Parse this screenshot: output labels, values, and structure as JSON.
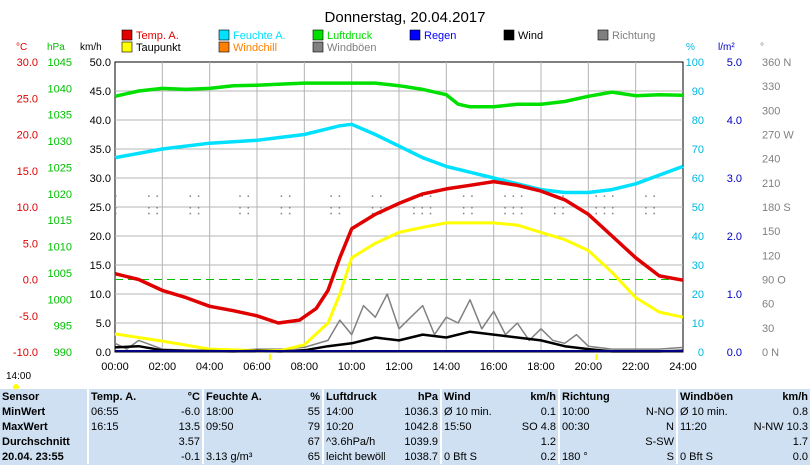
{
  "title": "Donnerstag, 20.04.2017",
  "legend": [
    {
      "label": "Temp. A.",
      "color": "#e00000"
    },
    {
      "label": "Feuchte A.",
      "color": "#00e0ff"
    },
    {
      "label": "Luftdruck",
      "color": "#00e000"
    },
    {
      "label": "Regen",
      "color": "#0000ff"
    },
    {
      "label": "Wind",
      "color": "#000000"
    },
    {
      "label": "Richtung",
      "color": "#808080"
    },
    {
      "label": "Taupunkt",
      "color": "#ffff00"
    },
    {
      "label": "Windchill",
      "color": "#ff8000"
    },
    {
      "label": "Windböen",
      "color": "#808080"
    }
  ],
  "units": {
    "temp": "°C",
    "pressure": "hPa",
    "wind": "km/h",
    "humidity": "%",
    "rain": "l/m²",
    "direction": "°"
  },
  "sun_marker_time": "14:00",
  "colors": {
    "temp": "#e00000",
    "humidity": "#00e0ff",
    "pressure": "#00e000",
    "dewpoint": "#ffff00",
    "wind": "#000000",
    "gust": "#808080",
    "rain": "#000080",
    "direction": "#808080",
    "threshold": "#00c000",
    "grid": "#b4b4b4",
    "axis_pressure_labels": "#00c000",
    "table_bg": "#cfe0f2"
  },
  "chart_data": {
    "type": "line",
    "x_ticks": [
      "00:00",
      "02:00",
      "04:00",
      "06:00",
      "08:00",
      "10:00",
      "12:00",
      "14:00",
      "16:00",
      "18:00",
      "20:00",
      "22:00",
      "24:00"
    ],
    "axes": {
      "temp": {
        "range": [
          -10,
          30
        ],
        "ticks": [
          "30.0",
          "25.0",
          "20.0",
          "15.0",
          "10.0",
          "5.0",
          "0.0",
          "-5.0",
          "-10.0"
        ]
      },
      "pressure": {
        "range": [
          990,
          1045
        ],
        "ticks": [
          "1045",
          "1040",
          "1035",
          "1030",
          "1025",
          "1020",
          "1015",
          "1010",
          "1005",
          "1000",
          "995",
          "990"
        ]
      },
      "wind": {
        "range": [
          0,
          50
        ],
        "ticks": [
          "50.0",
          "45.0",
          "40.0",
          "35.0",
          "30.0",
          "25.0",
          "20.0",
          "15.0",
          "10.0",
          "5.0",
          "0.0"
        ]
      },
      "humidity": {
        "range": [
          0,
          100
        ],
        "ticks": [
          "100",
          "90",
          "80",
          "70",
          "60",
          "50",
          "40",
          "30",
          "20",
          "10",
          "0"
        ]
      },
      "rain": {
        "range": [
          0,
          5
        ],
        "ticks": [
          "5.0",
          "4.0",
          "3.0",
          "2.0",
          "1.0",
          "0.0"
        ]
      },
      "direction": {
        "range": [
          0,
          360
        ],
        "ticks": [
          "360 N",
          "330",
          "300",
          "270 W",
          "240",
          "210",
          "180 S",
          "150",
          "120",
          "90 O",
          "60",
          "30",
          "0 N"
        ]
      }
    },
    "threshold_temp": 0,
    "series": [
      {
        "name": "Temp. A.",
        "axis": "temp",
        "points": [
          [
            0,
            0.8
          ],
          [
            1,
            0
          ],
          [
            2,
            -1.5
          ],
          [
            3,
            -2.5
          ],
          [
            4,
            -3.7
          ],
          [
            5,
            -4.3
          ],
          [
            6,
            -5.0
          ],
          [
            6.9,
            -6.0
          ],
          [
            7.8,
            -5.6
          ],
          [
            8.5,
            -4.0
          ],
          [
            9,
            -1.5
          ],
          [
            9.5,
            3.0
          ],
          [
            10,
            7.0
          ],
          [
            10.5,
            8.0
          ],
          [
            11,
            9.0
          ],
          [
            12,
            10.5
          ],
          [
            13,
            11.8
          ],
          [
            14,
            12.5
          ],
          [
            15,
            13.0
          ],
          [
            16,
            13.5
          ],
          [
            17,
            13.0
          ],
          [
            18,
            12.2
          ],
          [
            19,
            11.0
          ],
          [
            20,
            9.0
          ],
          [
            21,
            6.0
          ],
          [
            22,
            3.0
          ],
          [
            23,
            0.5
          ],
          [
            24,
            -0.1
          ]
        ]
      },
      {
        "name": "Taupunkt",
        "axis": "temp",
        "points": [
          [
            0,
            -7.5
          ],
          [
            2,
            -8.5
          ],
          [
            4,
            -9.6
          ],
          [
            6,
            -9.8
          ],
          [
            7,
            -9.8
          ],
          [
            8,
            -9.0
          ],
          [
            9,
            -6.0
          ],
          [
            9.5,
            -2.0
          ],
          [
            10,
            3.0
          ],
          [
            10.5,
            4.0
          ],
          [
            11,
            5.0
          ],
          [
            12,
            6.5
          ],
          [
            13,
            7.2
          ],
          [
            14,
            7.8
          ],
          [
            15,
            7.8
          ],
          [
            16,
            7.8
          ],
          [
            17,
            7.5
          ],
          [
            18,
            6.5
          ],
          [
            19,
            5.5
          ],
          [
            20,
            4.0
          ],
          [
            21,
            1.0
          ],
          [
            22,
            -2.5
          ],
          [
            23,
            -4.5
          ],
          [
            24,
            -5.2
          ]
        ]
      },
      {
        "name": "Feuchte A.",
        "axis": "humidity",
        "points": [
          [
            0,
            67
          ],
          [
            2,
            70
          ],
          [
            4,
            72
          ],
          [
            6,
            73
          ],
          [
            7,
            74
          ],
          [
            8,
            75
          ],
          [
            9,
            77
          ],
          [
            9.5,
            78
          ],
          [
            10,
            78.5
          ],
          [
            11,
            75
          ],
          [
            12,
            71
          ],
          [
            13,
            67
          ],
          [
            14,
            64
          ],
          [
            15,
            62
          ],
          [
            16,
            60
          ],
          [
            17,
            58
          ],
          [
            18,
            56
          ],
          [
            19,
            55
          ],
          [
            20,
            55
          ],
          [
            21,
            56
          ],
          [
            22,
            58
          ],
          [
            23,
            61
          ],
          [
            24,
            64
          ]
        ]
      },
      {
        "name": "Luftdruck",
        "axis": "pressure",
        "points": [
          [
            0,
            1038.5
          ],
          [
            1,
            1039.5
          ],
          [
            2,
            1040.0
          ],
          [
            3,
            1039.8
          ],
          [
            4,
            1040.0
          ],
          [
            5,
            1040.5
          ],
          [
            6,
            1040.6
          ],
          [
            7,
            1040.8
          ],
          [
            8,
            1041.0
          ],
          [
            9,
            1041.0
          ],
          [
            10,
            1041.0
          ],
          [
            11,
            1041.0
          ],
          [
            12,
            1040.5
          ],
          [
            13,
            1039.8
          ],
          [
            14,
            1038.8
          ],
          [
            14.5,
            1037.0
          ],
          [
            15,
            1036.5
          ],
          [
            16,
            1036.5
          ],
          [
            17,
            1037.0
          ],
          [
            18,
            1037.0
          ],
          [
            19,
            1037.5
          ],
          [
            20,
            1038.5
          ],
          [
            21,
            1039.3
          ],
          [
            22,
            1038.6
          ],
          [
            23,
            1038.8
          ],
          [
            24,
            1038.7
          ]
        ]
      },
      {
        "name": "Windböen",
        "axis": "wind",
        "points": [
          [
            0,
            1.5
          ],
          [
            0.5,
            0.5
          ],
          [
            1,
            2.0
          ],
          [
            2,
            0.5
          ],
          [
            3,
            0.3
          ],
          [
            5,
            0.2
          ],
          [
            6,
            0.5
          ],
          [
            7,
            0.5
          ],
          [
            8,
            0.8
          ],
          [
            9,
            2.0
          ],
          [
            9.5,
            5.5
          ],
          [
            10,
            3.0
          ],
          [
            10.5,
            8.0
          ],
          [
            11,
            6.0
          ],
          [
            11.5,
            10.0
          ],
          [
            12,
            4.0
          ],
          [
            12.5,
            6.0
          ],
          [
            13,
            8.0
          ],
          [
            13.5,
            3.0
          ],
          [
            14,
            6.0
          ],
          [
            14.5,
            5.0
          ],
          [
            15,
            9.0
          ],
          [
            15.5,
            4.0
          ],
          [
            16,
            7.0
          ],
          [
            16.5,
            3.0
          ],
          [
            17,
            5.0
          ],
          [
            17.5,
            2.0
          ],
          [
            18,
            4.0
          ],
          [
            18.5,
            2.0
          ],
          [
            19,
            1.5
          ],
          [
            19.5,
            3.0
          ],
          [
            20,
            1.0
          ],
          [
            21,
            0.5
          ],
          [
            22,
            0.5
          ],
          [
            23,
            0.5
          ],
          [
            24,
            0.8
          ]
        ]
      },
      {
        "name": "Wind",
        "axis": "wind",
        "points": [
          [
            0,
            0.8
          ],
          [
            1,
            1.0
          ],
          [
            2,
            0.3
          ],
          [
            3,
            0.2
          ],
          [
            5,
            0.1
          ],
          [
            6,
            0.2
          ],
          [
            7,
            0.1
          ],
          [
            8,
            0.3
          ],
          [
            9,
            1.0
          ],
          [
            10,
            1.5
          ],
          [
            11,
            2.5
          ],
          [
            12,
            2.0
          ],
          [
            13,
            3.0
          ],
          [
            14,
            2.5
          ],
          [
            15,
            3.5
          ],
          [
            16,
            3.0
          ],
          [
            17,
            2.5
          ],
          [
            18,
            2.0
          ],
          [
            19,
            1.0
          ],
          [
            20,
            0.5
          ],
          [
            21,
            0.1
          ],
          [
            22,
            0.1
          ],
          [
            23,
            0.1
          ],
          [
            24,
            0.2
          ]
        ]
      }
    ]
  },
  "table": {
    "headers": [
      "Sensor",
      "Temp. A.",
      "°C",
      "Feuchte A.",
      "%",
      "Luftdruck",
      "hPa",
      "Wind",
      "km/h",
      "Richtung",
      "",
      "Windböen",
      "km/h"
    ],
    "rows": [
      {
        "label": "MinWert",
        "cells": [
          "06:55",
          "-6.0",
          "18:00",
          "55",
          "14:00",
          "1036.3",
          "Ø 10 min.",
          "0.1",
          "10:00",
          "N-NO",
          "Ø 10 min.",
          "0.8"
        ]
      },
      {
        "label": "MaxWert",
        "cells": [
          "16:15",
          "13.5",
          "09:50",
          "79",
          "10:20",
          "1042.8",
          "15:50",
          "SO 4.8",
          "00:30",
          "N",
          "11:20",
          "N-NW 10.3"
        ]
      },
      {
        "label": "Durchschnitt",
        "cells": [
          "",
          "3.57",
          "",
          "67",
          "^3.6hPa/h",
          "1039.9",
          "",
          "1.2",
          "",
          "S-SW",
          "",
          "1.7"
        ]
      },
      {
        "label": "20.04. 23:55",
        "cells": [
          "",
          "-0.1",
          "3.13 g/m³",
          "65",
          "leicht bewölkt",
          "1038.7",
          "0 Bft S",
          "0.2",
          "180 °",
          "S",
          "0 Bft S",
          "0.0"
        ]
      }
    ]
  }
}
